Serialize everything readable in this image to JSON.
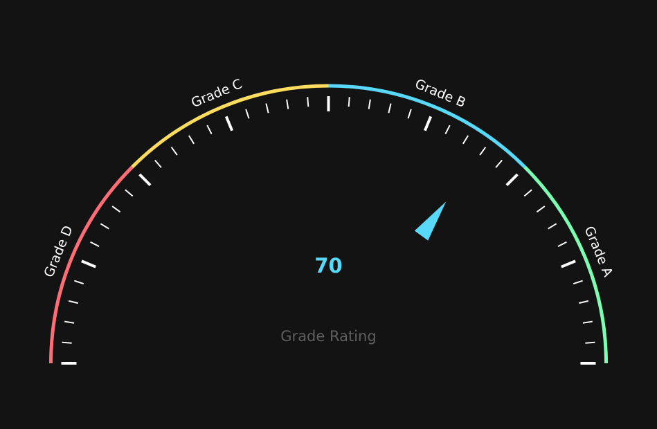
{
  "chart_data": {
    "type": "gauge",
    "min": 0,
    "max": 100,
    "value": 70,
    "value_text": "70",
    "caption": "Grade Rating",
    "split_number": 8,
    "minor_ticks_per_split": 5,
    "bands": [
      {
        "label": "Grade D",
        "from": 0,
        "to": 25,
        "color": "#ff6e76"
      },
      {
        "label": "Grade C",
        "from": 25,
        "to": 50,
        "color": "#fddd60"
      },
      {
        "label": "Grade B",
        "from": 50,
        "to": 75,
        "color": "#58d9f9"
      },
      {
        "label": "Grade A",
        "from": 75,
        "to": 100,
        "color": "#7cffb2"
      }
    ],
    "pointer_color": "#58d9f9"
  },
  "theme": {
    "background": "#131313",
    "tick_color": "#ffffff",
    "caption_color": "#5f5f5f"
  }
}
